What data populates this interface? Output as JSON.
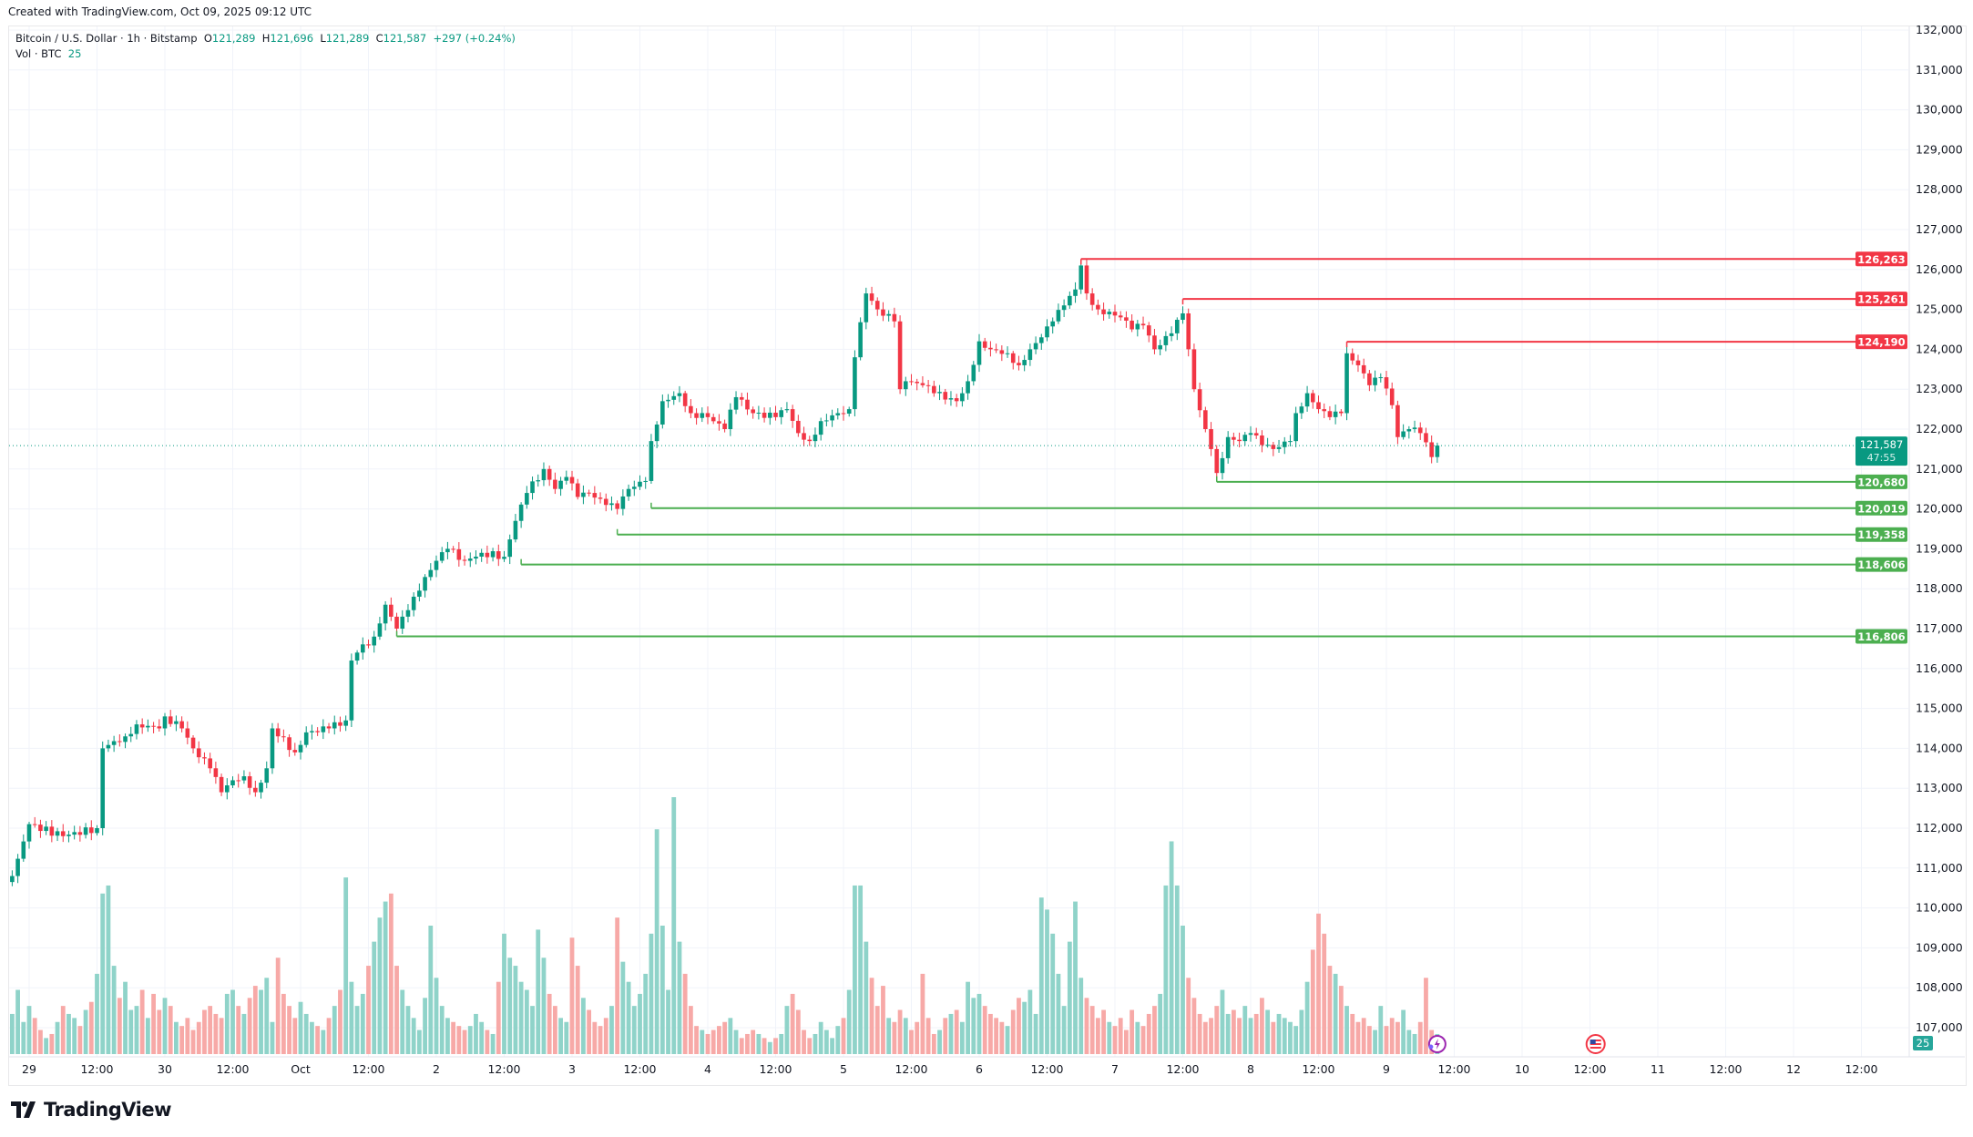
{
  "created_text": "Created with TradingView.com, Oct 09, 2025 09:12 UTC",
  "legend": {
    "symbol": "Bitcoin / U.S. Dollar · 1h · Bitstamp",
    "o_label": "O",
    "o": "121,289",
    "h_label": "H",
    "h": "121,696",
    "l_label": "L",
    "l": "121,289",
    "c_label": "C",
    "c": "121,587",
    "change": "+297 (+0.24%)",
    "vol_label": "Vol · BTC",
    "vol": "25"
  },
  "logo_text": "TradingView",
  "colors": {
    "up": "#089981",
    "down": "#f23645",
    "resistance": "#f23645",
    "support": "#4caf50",
    "vol_up": "#8fd3c9",
    "vol_down": "#f7a9a7"
  },
  "chart_data": {
    "type": "candlestick",
    "interval": "1h",
    "ylim": [
      106500,
      132300
    ],
    "grid": true,
    "price_ticks": [
      "132,000",
      "131,000",
      "130,000",
      "129,000",
      "128,000",
      "127,000",
      "126,000",
      "125,000",
      "124,000",
      "123,000",
      "122,000",
      "121,000",
      "120,000",
      "119,000",
      "118,000",
      "117,000",
      "116,000",
      "115,000",
      "114,000",
      "113,000",
      "112,000",
      "111,000",
      "110,000",
      "109,000",
      "108,000",
      "107,000"
    ],
    "time_ticks": [
      "29",
      "12:00",
      "30",
      "12:00",
      "Oct",
      "12:00",
      "2",
      "12:00",
      "3",
      "12:00",
      "4",
      "12:00",
      "5",
      "12:00",
      "6",
      "12:00",
      "7",
      "12:00",
      "8",
      "12:00",
      "9",
      "12:00",
      "10",
      "12:00",
      "11",
      "12:00",
      "12",
      "12:00"
    ],
    "close_path": [
      [
        "2025-09-28T21:00",
        110800
      ],
      [
        "2025-09-29T00:00",
        112100
      ],
      [
        "2025-09-29T06:00",
        111800
      ],
      [
        "2025-09-29T12:00",
        112000
      ],
      [
        "2025-09-29T13:00",
        114000
      ],
      [
        "2025-09-29T17:00",
        114300
      ],
      [
        "2025-09-29T19:00",
        114600
      ],
      [
        "2025-09-29T23:00",
        114500
      ],
      [
        "2025-09-30T00:00",
        114800
      ],
      [
        "2025-09-30T03:00",
        114500
      ],
      [
        "2025-09-30T05:00",
        114000
      ],
      [
        "2025-09-30T08:00",
        113500
      ],
      [
        "2025-09-30T10:00",
        112900
      ],
      [
        "2025-09-30T12:00",
        113200
      ],
      [
        "2025-09-30T14:00",
        113300
      ],
      [
        "2025-09-30T16:00",
        112900
      ],
      [
        "2025-09-30T18:00",
        113500
      ],
      [
        "2025-09-30T19:00",
        114500
      ],
      [
        "2025-09-30T23:00",
        113900
      ],
      [
        "2025-10-01T01:00",
        114400
      ],
      [
        "2025-10-01T05:00",
        114500
      ],
      [
        "2025-10-01T08:00",
        114700
      ],
      [
        "2025-10-01T09:00",
        116200
      ],
      [
        "2025-10-01T10:00",
        116400
      ],
      [
        "2025-10-01T13:00",
        116800
      ],
      [
        "2025-10-01T15:00",
        117600
      ],
      [
        "2025-10-01T17:00",
        117000
      ],
      [
        "2025-10-01T18:00",
        117300
      ],
      [
        "2025-10-01T20:00",
        117800
      ],
      [
        "2025-10-02T00:00",
        118700
      ],
      [
        "2025-10-02T02:00",
        119000
      ],
      [
        "2025-10-02T05:00",
        118700
      ],
      [
        "2025-10-02T08:00",
        118900
      ],
      [
        "2025-10-02T12:00",
        118800
      ],
      [
        "2025-10-02T14:00",
        119700
      ],
      [
        "2025-10-02T16:00",
        120400
      ],
      [
        "2025-10-02T19:00",
        121000
      ],
      [
        "2025-10-02T21:00",
        120500
      ],
      [
        "2025-10-02T23:00",
        120800
      ],
      [
        "2025-10-03T01:00",
        120300
      ],
      [
        "2025-10-03T03:00",
        120400
      ],
      [
        "2025-10-03T06:00",
        120100
      ],
      [
        "2025-10-03T08:00",
        120000
      ],
      [
        "2025-10-03T10:00",
        120500
      ],
      [
        "2025-10-03T13:00",
        120700
      ],
      [
        "2025-10-03T14:00",
        121700
      ],
      [
        "2025-10-03T16:00",
        122700
      ],
      [
        "2025-10-03T19:00",
        122900
      ],
      [
        "2025-10-03T21:00",
        122400
      ],
      [
        "2025-10-04T00:00",
        122300
      ],
      [
        "2025-10-04T03:00",
        122000
      ],
      [
        "2025-10-04T05:00",
        122800
      ],
      [
        "2025-10-04T08:00",
        122400
      ],
      [
        "2025-10-04T12:00",
        122300
      ],
      [
        "2025-10-04T14:00",
        122500
      ],
      [
        "2025-10-04T16:00",
        121900
      ],
      [
        "2025-10-04T18:00",
        121700
      ],
      [
        "2025-10-04T20:00",
        122200
      ],
      [
        "2025-10-04T23:00",
        122400
      ],
      [
        "2025-10-05T01:00",
        122500
      ],
      [
        "2025-10-05T02:00",
        123800
      ],
      [
        "2025-10-05T04:00",
        125400
      ],
      [
        "2025-10-05T06:00",
        125000
      ],
      [
        "2025-10-05T09:00",
        124700
      ],
      [
        "2025-10-05T10:00",
        123000
      ],
      [
        "2025-10-05T11:00",
        123200
      ],
      [
        "2025-10-05T14:00",
        123100
      ],
      [
        "2025-10-05T16:00",
        122900
      ],
      [
        "2025-10-05T20:00",
        122700
      ],
      [
        "2025-10-05T22:00",
        123200
      ],
      [
        "2025-10-06T00:00",
        124200
      ],
      [
        "2025-10-06T02:00",
        124000
      ],
      [
        "2025-10-06T05:00",
        123900
      ],
      [
        "2025-10-06T07:00",
        123600
      ],
      [
        "2025-10-06T09:00",
        124000
      ],
      [
        "2025-10-06T11:00",
        124300
      ],
      [
        "2025-10-06T13:00",
        124700
      ],
      [
        "2025-10-06T15:00",
        125100
      ],
      [
        "2025-10-06T17:00",
        125500
      ],
      [
        "2025-10-06T18:00",
        126100
      ],
      [
        "2025-10-06T19:00",
        125400
      ],
      [
        "2025-10-06T21:00",
        125000
      ],
      [
        "2025-10-07T01:00",
        124800
      ],
      [
        "2025-10-07T03:00",
        124500
      ],
      [
        "2025-10-07T05:00",
        124600
      ],
      [
        "2025-10-07T07:00",
        124000
      ],
      [
        "2025-10-07T10:00",
        124400
      ],
      [
        "2025-10-07T12:00",
        124900
      ],
      [
        "2025-10-07T13:00",
        124000
      ],
      [
        "2025-10-07T14:00",
        123000
      ],
      [
        "2025-10-07T16:00",
        122000
      ],
      [
        "2025-10-07T17:00",
        121500
      ],
      [
        "2025-10-07T18:00",
        120900
      ],
      [
        "2025-10-07T20:00",
        121800
      ],
      [
        "2025-10-07T22:00",
        121700
      ],
      [
        "2025-10-08T00:00",
        121900
      ],
      [
        "2025-10-08T02:00",
        121600
      ],
      [
        "2025-10-08T04:00",
        121500
      ],
      [
        "2025-10-08T07:00",
        121700
      ],
      [
        "2025-10-08T08:00",
        122400
      ],
      [
        "2025-10-08T10:00",
        122900
      ],
      [
        "2025-10-08T12:00",
        122500
      ],
      [
        "2025-10-08T14:00",
        122300
      ],
      [
        "2025-10-08T16:00",
        122400
      ],
      [
        "2025-10-08T17:00",
        123900
      ],
      [
        "2025-10-08T19:00",
        123600
      ],
      [
        "2025-10-08T21:00",
        123100
      ],
      [
        "2025-10-08T23:00",
        123300
      ],
      [
        "2025-10-09T01:00",
        122600
      ],
      [
        "2025-10-09T02:00",
        121800
      ],
      [
        "2025-10-09T04:00",
        122000
      ],
      [
        "2025-10-09T06:00",
        121900
      ],
      [
        "2025-10-09T08:00",
        121300
      ],
      [
        "2025-10-09T09:00",
        121587
      ]
    ],
    "volume_start": "2025-09-28T21:00",
    "volume_btc": [
      50,
      80,
      40,
      60,
      45,
      30,
      20,
      25,
      40,
      60,
      50,
      45,
      35,
      55,
      65,
      100,
      200,
      210,
      110,
      70,
      90,
      55,
      60,
      80,
      45,
      75,
      55,
      70,
      60,
      40,
      35,
      45,
      30,
      40,
      55,
      60,
      50,
      45,
      75,
      80,
      60,
      50,
      70,
      85,
      80,
      95,
      40,
      120,
      75,
      60,
      45,
      65,
      50,
      40,
      35,
      30,
      45,
      60,
      80,
      220,
      90,
      60,
      75,
      110,
      140,
      170,
      190,
      200,
      110,
      80,
      60,
      45,
      30,
      70,
      160,
      95,
      60,
      45,
      40,
      35,
      30,
      35,
      50,
      40,
      30,
      25,
      90,
      150,
      120,
      110,
      90,
      80,
      60,
      155,
      120,
      75,
      60,
      45,
      40,
      145,
      110,
      70,
      55,
      40,
      35,
      45,
      60,
      170,
      115,
      90,
      60,
      75,
      100,
      150,
      280,
      160,
      80,
      320,
      140,
      100,
      60,
      35,
      30,
      25,
      30,
      35,
      40,
      45,
      30,
      20,
      25,
      30,
      25,
      20,
      15,
      20,
      25,
      60,
      75,
      55,
      30,
      20,
      25,
      40,
      30,
      20,
      35,
      45,
      80,
      210,
      210,
      140,
      95,
      60,
      85,
      45,
      40,
      55,
      45,
      30,
      40,
      100,
      45,
      25,
      30,
      45,
      50,
      55,
      40,
      90,
      70,
      75,
      60,
      50,
      45,
      40,
      35,
      55,
      70,
      65,
      80,
      50,
      195,
      180,
      150,
      100,
      60,
      140,
      190,
      95,
      70,
      60,
      45,
      55,
      40,
      35,
      45,
      30,
      55,
      40,
      35,
      50,
      60,
      75,
      210,
      265,
      210,
      160,
      95,
      70,
      50,
      40,
      45,
      60,
      80,
      50,
      55,
      45,
      60,
      45,
      50,
      70,
      55,
      40,
      50,
      45,
      40,
      35,
      55,
      90,
      130,
      175,
      150,
      110,
      100,
      85,
      60,
      50,
      40,
      45,
      35,
      30,
      60,
      35,
      45,
      40,
      55,
      30,
      25,
      40,
      95,
      30,
      25
    ],
    "levels": [
      {
        "type": "resistance",
        "price": 126263,
        "label": "126,263",
        "from": "2025-10-06T18:00"
      },
      {
        "type": "resistance",
        "price": 125261,
        "label": "125,261",
        "from": "2025-10-07T12:00"
      },
      {
        "type": "resistance",
        "price": 124190,
        "label": "124,190",
        "from": "2025-10-08T17:00"
      },
      {
        "type": "support",
        "price": 120680,
        "label": "120,680",
        "from": "2025-10-07T18:00"
      },
      {
        "type": "support",
        "price": 120019,
        "label": "120,019",
        "from": "2025-10-03T14:00"
      },
      {
        "type": "support",
        "price": 119358,
        "label": "119,358",
        "from": "2025-10-03T08:00"
      },
      {
        "type": "support",
        "price": 118606,
        "label": "118,606",
        "from": "2025-10-02T15:00"
      },
      {
        "type": "support",
        "price": 116806,
        "label": "116,806",
        "from": "2025-10-01T17:00"
      }
    ],
    "last_price": {
      "value": 121587,
      "label": "121,587",
      "countdown": "47:55"
    },
    "volume_badge": "25",
    "events": [
      {
        "icon": "lightning-icon",
        "time": "2025-10-09T09:00"
      },
      {
        "icon": "us-flag-icon",
        "time": "2025-10-10T13:00"
      }
    ]
  }
}
